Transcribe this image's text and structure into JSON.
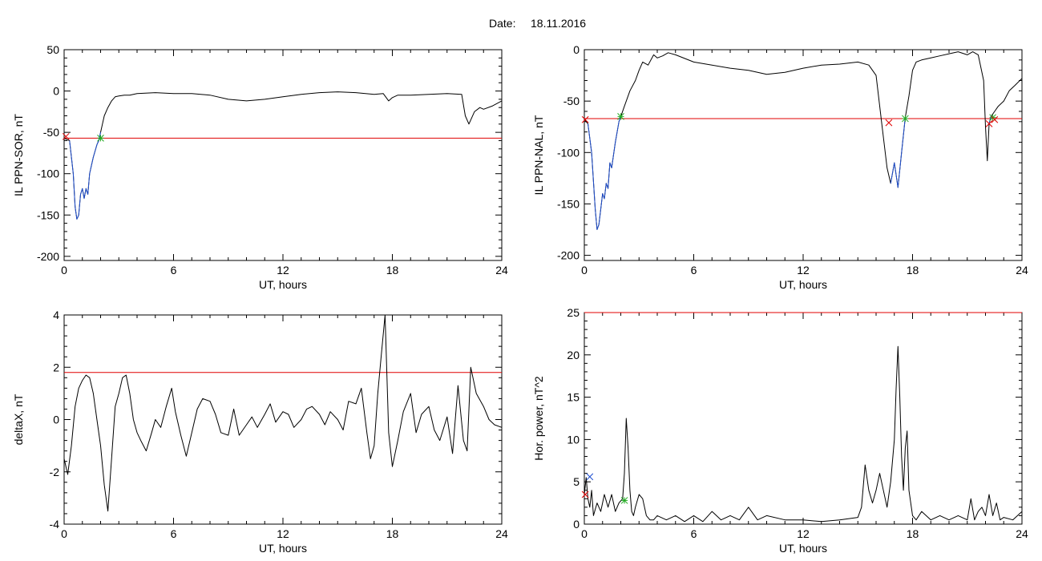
{
  "page": {
    "date_label": "Date:",
    "date_value": "18.11.2016"
  },
  "colors": {
    "series": "#000000",
    "threshold": "#e00000",
    "substorm_segment": "#1f4fd0",
    "onset_marker": "#e00000",
    "end_marker": "#22aa22",
    "blue_marker": "#1f4fd0"
  },
  "chart_data": [
    {
      "type": "line",
      "ylabel": "IL PPN-SOR, nT",
      "xlabel": "UT, hours",
      "xlim": [
        0,
        24
      ],
      "ylim": [
        -205,
        50
      ],
      "xticks": [
        0,
        6,
        12,
        18,
        24
      ],
      "xtick_labels": [
        "0",
        "6",
        "12",
        "18",
        "24"
      ],
      "yticks": [
        50,
        0,
        -50,
        -100,
        -150,
        -200
      ],
      "ytick_labels": [
        "50",
        "0",
        "-50",
        "-100",
        "-150",
        "-200"
      ],
      "threshold": -57,
      "series": [
        {
          "x": [
            0,
            0.3,
            0.5,
            0.6,
            0.7,
            0.8,
            0.9,
            1.0,
            1.1,
            1.2,
            1.3,
            1.4,
            1.5,
            1.6,
            1.8,
            1.9,
            2.0,
            2.2,
            2.4,
            2.6,
            2.8,
            3.0,
            3.3,
            3.6,
            3.8,
            4.0,
            5,
            6,
            7,
            8,
            9,
            10,
            11,
            12,
            13,
            14,
            15,
            16,
            17,
            17.5,
            17.8,
            18,
            18.3,
            18.6,
            19,
            20,
            21,
            21.8,
            22.0,
            22.2,
            22.5,
            22.8,
            23.0,
            23.5,
            24
          ],
          "y": [
            -57,
            -60,
            -100,
            -140,
            -155,
            -150,
            -125,
            -118,
            -130,
            -118,
            -125,
            -100,
            -90,
            -80,
            -65,
            -60,
            -50,
            -30,
            -20,
            -12,
            -7,
            -6,
            -5,
            -5,
            -4,
            -3,
            -2,
            -3,
            -3,
            -5,
            -10,
            -12,
            -10,
            -7,
            -4,
            -2,
            -1,
            -2,
            -4,
            -3,
            -12,
            -8,
            -5,
            -5,
            -5,
            -4,
            -3,
            -4,
            -30,
            -40,
            -25,
            -20,
            -22,
            -18,
            -12
          ]
        }
      ],
      "markers": [
        {
          "x": 0.1,
          "y": -55,
          "kind": "onset"
        },
        {
          "x": 2.0,
          "y": -57,
          "kind": "end"
        }
      ]
    },
    {
      "type": "line",
      "ylabel": "IL PPN-NAL, nT",
      "xlabel": "UT, hours",
      "xlim": [
        0,
        24
      ],
      "ylim": [
        -205,
        0
      ],
      "xticks": [
        0,
        6,
        12,
        18,
        24
      ],
      "xtick_labels": [
        "0",
        "6",
        "12",
        "18",
        "24"
      ],
      "yticks": [
        0,
        -50,
        -100,
        -150,
        -200
      ],
      "ytick_labels": [
        "0",
        "-50",
        "-100",
        "-150",
        "-200"
      ],
      "threshold": -67,
      "series": [
        {
          "x": [
            0,
            0.2,
            0.4,
            0.6,
            0.7,
            0.8,
            0.9,
            1.0,
            1.1,
            1.2,
            1.3,
            1.4,
            1.5,
            1.7,
            1.9,
            2.0,
            2.2,
            2.5,
            2.8,
            3.0,
            3.2,
            3.5,
            3.8,
            4.0,
            4.3,
            4.6,
            5,
            6,
            7,
            8,
            9,
            10,
            11,
            12,
            13,
            14,
            15,
            15.6,
            16.0,
            16.3,
            16.6,
            16.8,
            17.0,
            17.2,
            17.4,
            17.6,
            17.8,
            18.0,
            18.2,
            18.5,
            19,
            19.5,
            20,
            20.5,
            21,
            21.3,
            21.6,
            21.9,
            22.0,
            22.1,
            22.2,
            22.3,
            22.5,
            22.7,
            23.0,
            23.3,
            23.6,
            24
          ],
          "y": [
            -68,
            -72,
            -100,
            -155,
            -175,
            -170,
            -155,
            -140,
            -145,
            -130,
            -135,
            -110,
            -115,
            -90,
            -70,
            -65,
            -55,
            -40,
            -30,
            -20,
            -12,
            -15,
            -5,
            -8,
            -6,
            -3,
            -5,
            -12,
            -15,
            -18,
            -20,
            -24,
            -22,
            -18,
            -15,
            -14,
            -12,
            -15,
            -25,
            -70,
            -115,
            -130,
            -110,
            -134,
            -100,
            -66,
            -45,
            -20,
            -12,
            -10,
            -8,
            -6,
            -4,
            -2,
            -5,
            -2,
            -5,
            -30,
            -75,
            -108,
            -72,
            -65,
            -60,
            -55,
            -50,
            -40,
            -35,
            -28
          ]
        }
      ],
      "markers": [
        {
          "x": 0.05,
          "y": -68,
          "kind": "onset"
        },
        {
          "x": 2.0,
          "y": -65,
          "kind": "end"
        },
        {
          "x": 16.7,
          "y": -71,
          "kind": "onset"
        },
        {
          "x": 17.6,
          "y": -67,
          "kind": "end"
        },
        {
          "x": 22.2,
          "y": -72,
          "kind": "onset"
        },
        {
          "x": 22.4,
          "y": -66,
          "kind": "end"
        },
        {
          "x": 22.5,
          "y": -68,
          "kind": "onset"
        }
      ]
    },
    {
      "type": "line",
      "ylabel": "deltaX, nT",
      "xlabel": "UT, hours",
      "xlim": [
        0,
        24
      ],
      "ylim": [
        -4,
        4
      ],
      "xticks": [
        0,
        6,
        12,
        18,
        24
      ],
      "xtick_labels": [
        "0",
        "6",
        "12",
        "18",
        "24"
      ],
      "yticks": [
        4,
        2,
        0,
        -2,
        -4
      ],
      "ytick_labels": [
        "4",
        "2",
        "0",
        "-2",
        "-4"
      ],
      "threshold": 1.8,
      "series": [
        {
          "x": [
            0,
            0.2,
            0.4,
            0.6,
            0.8,
            1.0,
            1.2,
            1.4,
            1.6,
            1.8,
            2.0,
            2.2,
            2.4,
            2.6,
            2.8,
            3.0,
            3.2,
            3.4,
            3.6,
            3.8,
            4.0,
            4.2,
            4.5,
            4.8,
            5.0,
            5.3,
            5.6,
            5.9,
            6.1,
            6.4,
            6.7,
            7.0,
            7.3,
            7.6,
            8.0,
            8.3,
            8.6,
            9.0,
            9.3,
            9.6,
            10.0,
            10.3,
            10.6,
            11.0,
            11.3,
            11.6,
            12.0,
            12.3,
            12.6,
            13.0,
            13.3,
            13.6,
            14.0,
            14.3,
            14.6,
            15.0,
            15.3,
            15.6,
            16.0,
            16.3,
            16.6,
            16.8,
            17.0,
            17.2,
            17.4,
            17.6,
            17.8,
            18.0,
            18.3,
            18.6,
            19.0,
            19.3,
            19.6,
            20.0,
            20.3,
            20.6,
            21.0,
            21.3,
            21.6,
            21.9,
            22.1,
            22.3,
            22.6,
            23.0,
            23.3,
            23.6,
            24.0
          ],
          "y": [
            -1.5,
            -2.1,
            -1.0,
            0.5,
            1.2,
            1.5,
            1.7,
            1.6,
            1.0,
            0.0,
            -1.0,
            -2.5,
            -3.5,
            -1.5,
            0.5,
            1.0,
            1.6,
            1.7,
            1.0,
            0.0,
            -0.5,
            -0.8,
            -1.2,
            -0.5,
            0.0,
            -0.3,
            0.5,
            1.2,
            0.3,
            -0.6,
            -1.4,
            -0.5,
            0.4,
            0.8,
            0.7,
            0.2,
            -0.5,
            -0.6,
            0.4,
            -0.6,
            -0.2,
            0.1,
            -0.3,
            0.2,
            0.6,
            -0.1,
            0.3,
            0.2,
            -0.3,
            0.0,
            0.4,
            0.5,
            0.2,
            -0.2,
            0.3,
            0.0,
            -0.4,
            0.7,
            0.6,
            1.2,
            -0.5,
            -1.5,
            -1.0,
            1.0,
            2.5,
            4.0,
            -0.5,
            -1.8,
            -0.8,
            0.3,
            1.0,
            -0.5,
            0.2,
            0.5,
            -0.4,
            -0.8,
            0.1,
            -1.3,
            1.3,
            -0.8,
            -1.2,
            2.0,
            1.0,
            0.5,
            0.0,
            -0.2,
            -0.3
          ]
        }
      ],
      "markers": []
    },
    {
      "type": "line",
      "ylabel": "Hor. power, nT^2",
      "xlabel": "UT, hours",
      "xlim": [
        0,
        24
      ],
      "ylim": [
        0,
        25
      ],
      "xticks": [
        0,
        6,
        12,
        18,
        24
      ],
      "xtick_labels": [
        "0",
        "6",
        "12",
        "18",
        "24"
      ],
      "yticks": [
        25,
        20,
        15,
        10,
        5,
        0
      ],
      "ytick_labels": [
        "25",
        "20",
        "15",
        "10",
        "5",
        "0"
      ],
      "threshold": 25,
      "series": [
        {
          "x": [
            0,
            0.1,
            0.2,
            0.3,
            0.4,
            0.5,
            0.7,
            0.9,
            1.1,
            1.3,
            1.5,
            1.7,
            1.9,
            2.1,
            2.2,
            2.3,
            2.4,
            2.5,
            2.6,
            2.7,
            2.8,
            3.0,
            3.2,
            3.4,
            3.6,
            3.8,
            4.0,
            4.5,
            5.0,
            5.5,
            6.0,
            6.5,
            7.0,
            7.5,
            8.0,
            8.5,
            9.0,
            9.5,
            10,
            11,
            12,
            13,
            14,
            15,
            15.2,
            15.4,
            15.6,
            15.8,
            16.0,
            16.2,
            16.4,
            16.6,
            16.8,
            17.0,
            17.1,
            17.2,
            17.3,
            17.4,
            17.5,
            17.6,
            17.7,
            17.8,
            18.0,
            18.2,
            18.5,
            19.0,
            19.5,
            20.0,
            20.5,
            21.0,
            21.2,
            21.4,
            21.6,
            21.8,
            22.0,
            22.2,
            22.4,
            22.6,
            22.8,
            23.0,
            23.5,
            24.0
          ],
          "y": [
            3.5,
            5.5,
            3.0,
            2.0,
            4.0,
            1.0,
            2.5,
            1.5,
            3.5,
            2.0,
            3.5,
            1.5,
            2.5,
            3.0,
            6.0,
            12.5,
            9.0,
            4.0,
            1.5,
            1.0,
            2.0,
            3.5,
            3.0,
            1.0,
            0.5,
            0.5,
            1.0,
            0.5,
            1.0,
            0.3,
            1.0,
            0.3,
            1.5,
            0.5,
            1.0,
            0.5,
            2.0,
            0.5,
            1.0,
            0.5,
            0.5,
            0.3,
            0.5,
            0.8,
            2.0,
            7.0,
            4.0,
            2.5,
            4.0,
            6.0,
            4.0,
            2.0,
            5.0,
            10.0,
            16.0,
            21.0,
            15.0,
            8.0,
            4.0,
            9.0,
            11.0,
            4.0,
            1.0,
            0.5,
            1.5,
            0.5,
            1.0,
            0.5,
            1.0,
            0.5,
            3.0,
            0.5,
            1.5,
            2.0,
            1.0,
            3.5,
            1.0,
            2.5,
            0.5,
            0.8,
            0.5,
            1.5
          ]
        }
      ],
      "markers": [
        {
          "x": 0.05,
          "y": 3.5,
          "kind": "onset"
        },
        {
          "x": 0.3,
          "y": 5.6,
          "kind": "blue"
        },
        {
          "x": 2.2,
          "y": 2.8,
          "kind": "end"
        }
      ]
    }
  ]
}
